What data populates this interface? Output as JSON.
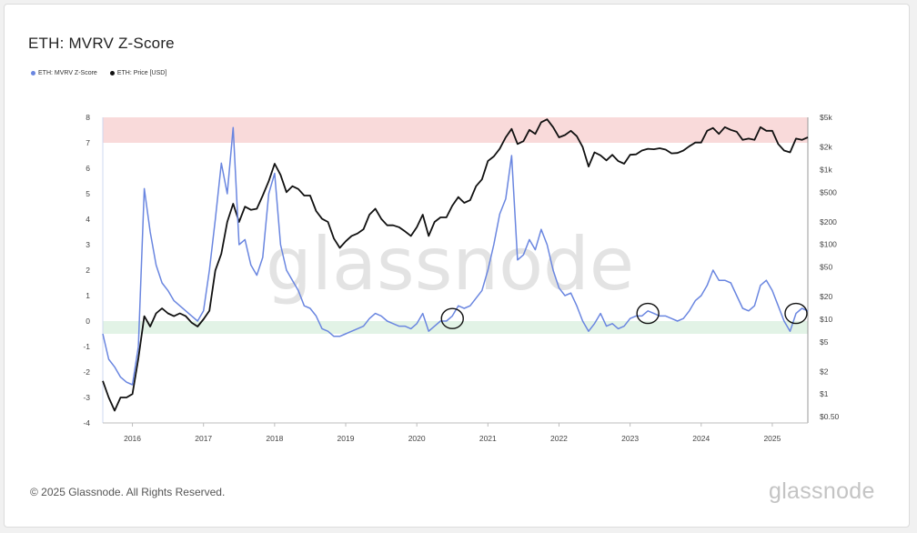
{
  "title": "ETH: MVRV Z-Score",
  "legend": [
    {
      "label": "ETH: MVRV Z-Score",
      "color": "#6a86e0"
    },
    {
      "label": "ETH: Price [USD]",
      "color": "#111111"
    }
  ],
  "watermark": "glassnode",
  "footer": {
    "copyright": "© 2025 Glassnode. All Rights Reserved.",
    "logo": "glassnode"
  },
  "chart_data": {
    "type": "line",
    "title": "ETH: MVRV Z-Score",
    "xlabel": "",
    "ylabel": "",
    "x_ticks": [
      "2016",
      "2017",
      "2018",
      "2019",
      "2020",
      "2021",
      "2022",
      "2023",
      "2024",
      "2025"
    ],
    "xlim": [
      "2015-08",
      "2025-07"
    ],
    "y_left": {
      "range": [
        -4,
        8
      ],
      "ticks": [
        "8",
        "7",
        "6",
        "5",
        "4",
        "3",
        "2",
        "1",
        "0",
        "-1",
        "-2",
        "-3",
        "-4"
      ]
    },
    "y_right": {
      "scale": "log",
      "ticks": [
        "$5k",
        "$2k",
        "$1k",
        "$500",
        "$200",
        "$100",
        "$50",
        "$20",
        "$10",
        "$5",
        "$2",
        "$1",
        "$0.50"
      ],
      "tick_values": [
        5000,
        2000,
        1000,
        500,
        200,
        100,
        50,
        20,
        10,
        5,
        2,
        1,
        0.5
      ]
    },
    "bands": [
      {
        "axis": "left",
        "from": 7,
        "to": 8,
        "color": "#f9dada"
      },
      {
        "axis": "left",
        "from": -0.5,
        "to": 0,
        "color": "#e2f3e6"
      }
    ],
    "circles": [
      {
        "x": "2020-07",
        "y": 0.1
      },
      {
        "x": "2023-04",
        "y": 0.3
      },
      {
        "x": "2025-05",
        "y": 0.3
      }
    ],
    "grid": false,
    "legend_position": "top-left",
    "series": [
      {
        "name": "ETH: MVRV Z-Score",
        "axis": "left",
        "color": "#6a86e0",
        "points": [
          [
            "2015-08",
            -0.5
          ],
          [
            "2015-09",
            -1.5
          ],
          [
            "2015-10",
            -1.8
          ],
          [
            "2015-11",
            -2.2
          ],
          [
            "2015-12",
            -2.4
          ],
          [
            "2016-01",
            -2.5
          ],
          [
            "2016-02",
            -1.0
          ],
          [
            "2016-03",
            5.2
          ],
          [
            "2016-04",
            3.5
          ],
          [
            "2016-05",
            2.2
          ],
          [
            "2016-06",
            1.5
          ],
          [
            "2016-07",
            1.2
          ],
          [
            "2016-08",
            0.8
          ],
          [
            "2016-09",
            0.6
          ],
          [
            "2016-10",
            0.4
          ],
          [
            "2016-11",
            0.2
          ],
          [
            "2016-12",
            0.0
          ],
          [
            "2017-01",
            0.4
          ],
          [
            "2017-02",
            2.0
          ],
          [
            "2017-03",
            4.0
          ],
          [
            "2017-04",
            6.2
          ],
          [
            "2017-05",
            5.0
          ],
          [
            "2017-06",
            7.6
          ],
          [
            "2017-07",
            3.0
          ],
          [
            "2017-08",
            3.2
          ],
          [
            "2017-09",
            2.2
          ],
          [
            "2017-10",
            1.8
          ],
          [
            "2017-11",
            2.5
          ],
          [
            "2017-12",
            5.0
          ],
          [
            "2018-01",
            5.8
          ],
          [
            "2018-02",
            3.0
          ],
          [
            "2018-03",
            2.0
          ],
          [
            "2018-04",
            1.6
          ],
          [
            "2018-05",
            1.2
          ],
          [
            "2018-06",
            0.6
          ],
          [
            "2018-07",
            0.5
          ],
          [
            "2018-08",
            0.2
          ],
          [
            "2018-09",
            -0.3
          ],
          [
            "2018-10",
            -0.4
          ],
          [
            "2018-11",
            -0.6
          ],
          [
            "2018-12",
            -0.6
          ],
          [
            "2019-01",
            -0.5
          ],
          [
            "2019-02",
            -0.4
          ],
          [
            "2019-03",
            -0.3
          ],
          [
            "2019-04",
            -0.2
          ],
          [
            "2019-05",
            0.1
          ],
          [
            "2019-06",
            0.3
          ],
          [
            "2019-07",
            0.2
          ],
          [
            "2019-08",
            0.0
          ],
          [
            "2019-09",
            -0.1
          ],
          [
            "2019-10",
            -0.2
          ],
          [
            "2019-11",
            -0.2
          ],
          [
            "2019-12",
            -0.3
          ],
          [
            "2020-01",
            -0.1
          ],
          [
            "2020-02",
            0.3
          ],
          [
            "2020-03",
            -0.4
          ],
          [
            "2020-04",
            -0.2
          ],
          [
            "2020-05",
            0.0
          ],
          [
            "2020-06",
            0.0
          ],
          [
            "2020-07",
            0.2
          ],
          [
            "2020-08",
            0.6
          ],
          [
            "2020-09",
            0.5
          ],
          [
            "2020-10",
            0.6
          ],
          [
            "2020-11",
            0.9
          ],
          [
            "2020-12",
            1.2
          ],
          [
            "2021-01",
            2.0
          ],
          [
            "2021-02",
            3.0
          ],
          [
            "2021-03",
            4.2
          ],
          [
            "2021-04",
            4.8
          ],
          [
            "2021-05",
            6.5
          ],
          [
            "2021-06",
            2.4
          ],
          [
            "2021-07",
            2.6
          ],
          [
            "2021-08",
            3.2
          ],
          [
            "2021-09",
            2.8
          ],
          [
            "2021-10",
            3.6
          ],
          [
            "2021-11",
            3.0
          ],
          [
            "2021-12",
            2.0
          ],
          [
            "2022-01",
            1.3
          ],
          [
            "2022-02",
            1.0
          ],
          [
            "2022-03",
            1.1
          ],
          [
            "2022-04",
            0.6
          ],
          [
            "2022-05",
            0.0
          ],
          [
            "2022-06",
            -0.4
          ],
          [
            "2022-07",
            -0.1
          ],
          [
            "2022-08",
            0.3
          ],
          [
            "2022-09",
            -0.2
          ],
          [
            "2022-10",
            -0.1
          ],
          [
            "2022-11",
            -0.3
          ],
          [
            "2022-12",
            -0.2
          ],
          [
            "2023-01",
            0.1
          ],
          [
            "2023-02",
            0.2
          ],
          [
            "2023-03",
            0.2
          ],
          [
            "2023-04",
            0.4
          ],
          [
            "2023-05",
            0.3
          ],
          [
            "2023-06",
            0.2
          ],
          [
            "2023-07",
            0.2
          ],
          [
            "2023-08",
            0.1
          ],
          [
            "2023-09",
            0.0
          ],
          [
            "2023-10",
            0.1
          ],
          [
            "2023-11",
            0.4
          ],
          [
            "2023-12",
            0.8
          ],
          [
            "2024-01",
            1.0
          ],
          [
            "2024-02",
            1.4
          ],
          [
            "2024-03",
            2.0
          ],
          [
            "2024-04",
            1.6
          ],
          [
            "2024-05",
            1.6
          ],
          [
            "2024-06",
            1.5
          ],
          [
            "2024-07",
            1.0
          ],
          [
            "2024-08",
            0.5
          ],
          [
            "2024-09",
            0.4
          ],
          [
            "2024-10",
            0.6
          ],
          [
            "2024-11",
            1.4
          ],
          [
            "2024-12",
            1.6
          ],
          [
            "2025-01",
            1.2
          ],
          [
            "2025-02",
            0.6
          ],
          [
            "2025-03",
            0.0
          ],
          [
            "2025-04",
            -0.4
          ],
          [
            "2025-05",
            0.3
          ],
          [
            "2025-06",
            0.5
          ],
          [
            "2025-07",
            0.4
          ]
        ]
      },
      {
        "name": "ETH: Price [USD]",
        "axis": "right",
        "color": "#111111",
        "points": [
          [
            "2015-08",
            1.5
          ],
          [
            "2015-09",
            0.9
          ],
          [
            "2015-10",
            0.6
          ],
          [
            "2015-11",
            0.9
          ],
          [
            "2015-12",
            0.9
          ],
          [
            "2016-01",
            1.0
          ],
          [
            "2016-02",
            3.0
          ],
          [
            "2016-03",
            11
          ],
          [
            "2016-04",
            8
          ],
          [
            "2016-05",
            12
          ],
          [
            "2016-06",
            14
          ],
          [
            "2016-07",
            12
          ],
          [
            "2016-08",
            11
          ],
          [
            "2016-09",
            12
          ],
          [
            "2016-10",
            11
          ],
          [
            "2016-11",
            9
          ],
          [
            "2016-12",
            8
          ],
          [
            "2017-01",
            10
          ],
          [
            "2017-02",
            13
          ],
          [
            "2017-03",
            45
          ],
          [
            "2017-04",
            75
          ],
          [
            "2017-05",
            200
          ],
          [
            "2017-06",
            350
          ],
          [
            "2017-07",
            200
          ],
          [
            "2017-08",
            320
          ],
          [
            "2017-09",
            290
          ],
          [
            "2017-10",
            300
          ],
          [
            "2017-11",
            450
          ],
          [
            "2017-12",
            700
          ],
          [
            "2018-01",
            1200
          ],
          [
            "2018-02",
            850
          ],
          [
            "2018-03",
            500
          ],
          [
            "2018-04",
            600
          ],
          [
            "2018-05",
            550
          ],
          [
            "2018-06",
            450
          ],
          [
            "2018-07",
            450
          ],
          [
            "2018-08",
            280
          ],
          [
            "2018-09",
            220
          ],
          [
            "2018-10",
            200
          ],
          [
            "2018-11",
            120
          ],
          [
            "2018-12",
            90
          ],
          [
            "2019-01",
            110
          ],
          [
            "2019-02",
            130
          ],
          [
            "2019-03",
            140
          ],
          [
            "2019-04",
            160
          ],
          [
            "2019-05",
            250
          ],
          [
            "2019-06",
            300
          ],
          [
            "2019-07",
            220
          ],
          [
            "2019-08",
            180
          ],
          [
            "2019-09",
            180
          ],
          [
            "2019-10",
            170
          ],
          [
            "2019-11",
            150
          ],
          [
            "2019-12",
            130
          ],
          [
            "2020-01",
            170
          ],
          [
            "2020-02",
            250
          ],
          [
            "2020-03",
            130
          ],
          [
            "2020-04",
            200
          ],
          [
            "2020-05",
            230
          ],
          [
            "2020-06",
            230
          ],
          [
            "2020-07",
            330
          ],
          [
            "2020-08",
            430
          ],
          [
            "2020-09",
            360
          ],
          [
            "2020-10",
            390
          ],
          [
            "2020-11",
            600
          ],
          [
            "2020-12",
            740
          ],
          [
            "2021-01",
            1300
          ],
          [
            "2021-02",
            1500
          ],
          [
            "2021-03",
            1900
          ],
          [
            "2021-04",
            2700
          ],
          [
            "2021-05",
            3500
          ],
          [
            "2021-06",
            2200
          ],
          [
            "2021-07",
            2400
          ],
          [
            "2021-08",
            3400
          ],
          [
            "2021-09",
            3000
          ],
          [
            "2021-10",
            4300
          ],
          [
            "2021-11",
            4700
          ],
          [
            "2021-12",
            3700
          ],
          [
            "2022-01",
            2700
          ],
          [
            "2022-02",
            2900
          ],
          [
            "2022-03",
            3300
          ],
          [
            "2022-04",
            2800
          ],
          [
            "2022-05",
            2000
          ],
          [
            "2022-06",
            1100
          ],
          [
            "2022-07",
            1700
          ],
          [
            "2022-08",
            1550
          ],
          [
            "2022-09",
            1330
          ],
          [
            "2022-10",
            1580
          ],
          [
            "2022-11",
            1300
          ],
          [
            "2022-12",
            1200
          ],
          [
            "2023-01",
            1580
          ],
          [
            "2023-02",
            1600
          ],
          [
            "2023-03",
            1800
          ],
          [
            "2023-04",
            1900
          ],
          [
            "2023-05",
            1870
          ],
          [
            "2023-06",
            1930
          ],
          [
            "2023-07",
            1850
          ],
          [
            "2023-08",
            1650
          ],
          [
            "2023-09",
            1670
          ],
          [
            "2023-10",
            1800
          ],
          [
            "2023-11",
            2050
          ],
          [
            "2023-12",
            2300
          ],
          [
            "2024-01",
            2300
          ],
          [
            "2024-02",
            3300
          ],
          [
            "2024-03",
            3600
          ],
          [
            "2024-04",
            3000
          ],
          [
            "2024-05",
            3700
          ],
          [
            "2024-06",
            3400
          ],
          [
            "2024-07",
            3200
          ],
          [
            "2024-08",
            2500
          ],
          [
            "2024-09",
            2600
          ],
          [
            "2024-10",
            2500
          ],
          [
            "2024-11",
            3700
          ],
          [
            "2024-12",
            3300
          ],
          [
            "2025-01",
            3300
          ],
          [
            "2025-02",
            2200
          ],
          [
            "2025-03",
            1800
          ],
          [
            "2025-04",
            1700
          ],
          [
            "2025-05",
            2600
          ],
          [
            "2025-06",
            2500
          ],
          [
            "2025-07",
            2700
          ]
        ]
      }
    ]
  }
}
